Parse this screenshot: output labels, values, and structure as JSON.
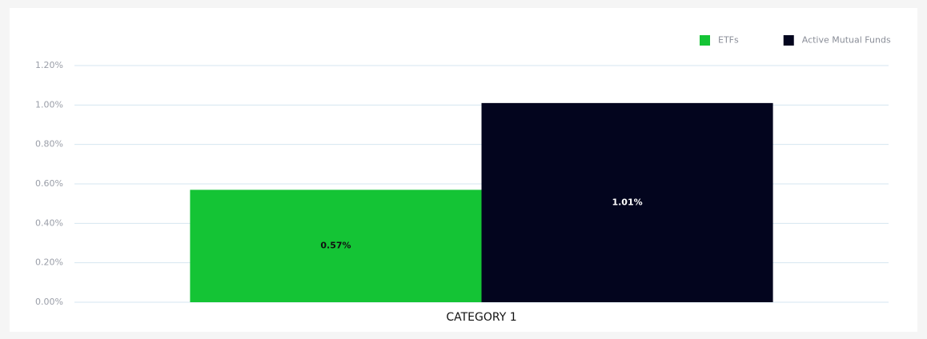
{
  "chart_data": {
    "type": "bar",
    "categories": [
      "CATEGORY 1"
    ],
    "series": [
      {
        "name": "ETFs",
        "color": "#14c435",
        "values": [
          0.57
        ],
        "value_labels": [
          "0.57%"
        ],
        "label_color": "#111111"
      },
      {
        "name": "Active Mutual Funds",
        "color": "#03051e",
        "values": [
          1.01
        ],
        "value_labels": [
          "1.01%"
        ],
        "label_color": "#ffffff"
      }
    ],
    "ylim": [
      0,
      1.2
    ],
    "yticks": [
      {
        "value": 0,
        "label": "0.00%"
      },
      {
        "value": 0.2,
        "label": "0.20%"
      },
      {
        "value": 0.4,
        "label": "0.40%"
      },
      {
        "value": 0.6,
        "label": "0.60%"
      },
      {
        "value": 0.8,
        "label": "0.80%"
      },
      {
        "value": 1.0,
        "label": "1.00%"
      },
      {
        "value": 1.2,
        "label": "1.20%"
      }
    ],
    "grid": true,
    "legend": "top-right"
  }
}
